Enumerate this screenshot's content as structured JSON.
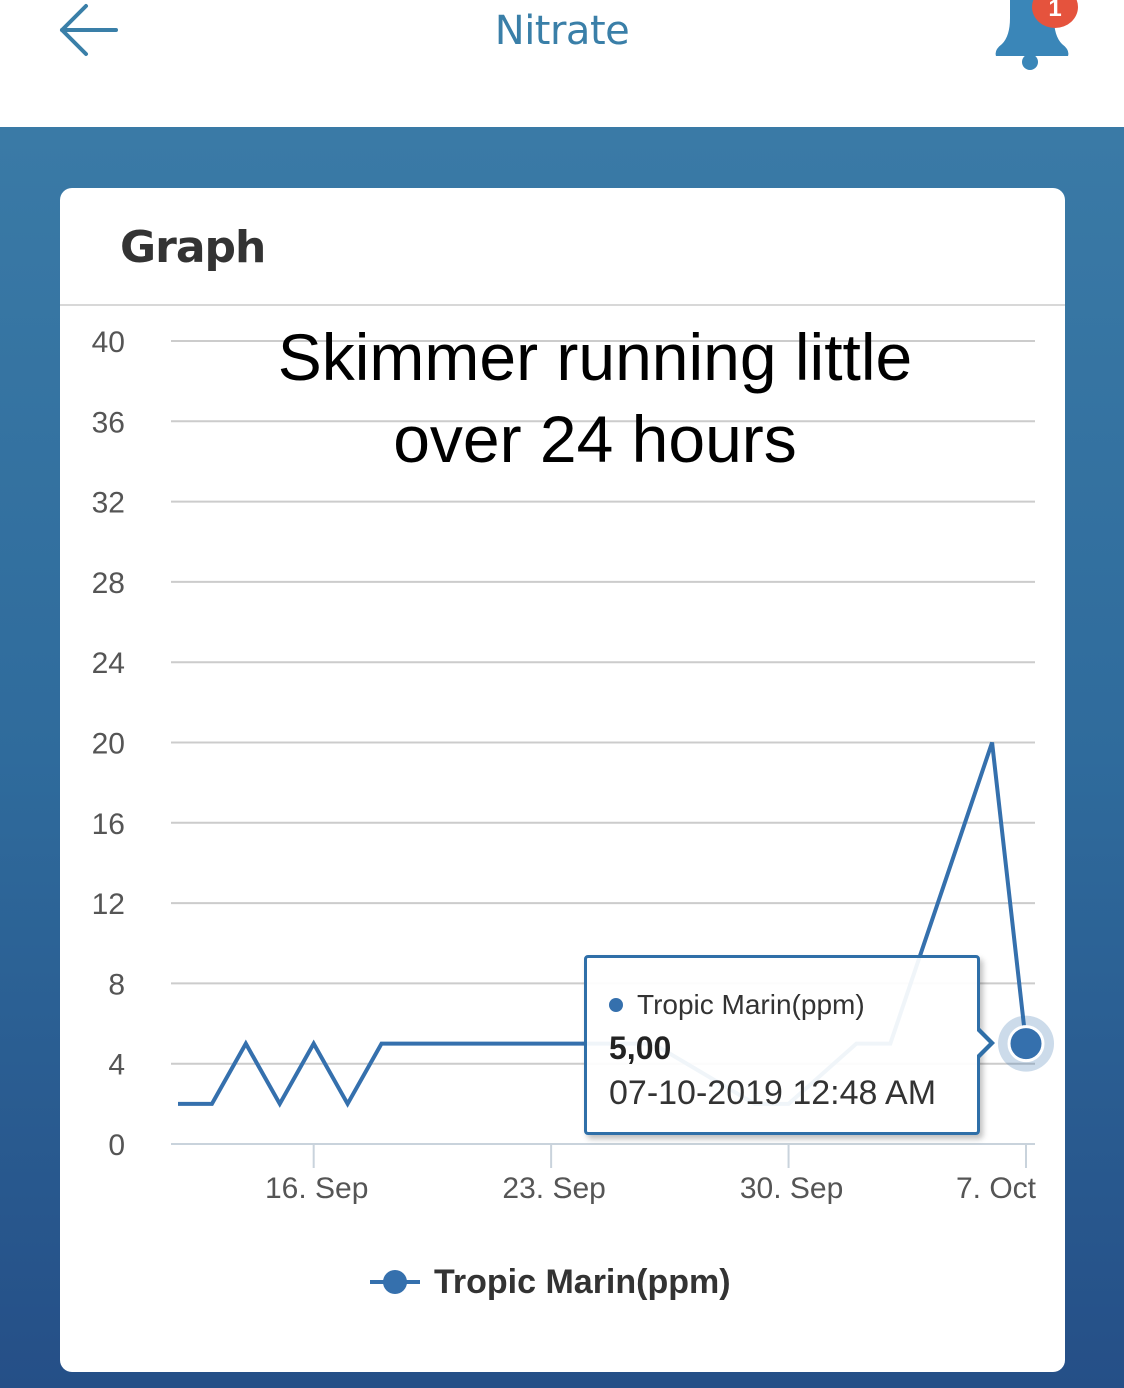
{
  "header": {
    "title": "Nitrate",
    "back_icon": "arrow-left-icon",
    "notification_icon": "bell-icon",
    "notification_count": "1",
    "accent_color": "#3a7fa8",
    "badge_color": "#e5533d"
  },
  "card": {
    "title": "Graph"
  },
  "annotation": {
    "line1": "Skimmer running little",
    "line2": "over 24 hours"
  },
  "tooltip": {
    "series": "Tropic Marin(ppm)",
    "value": "5,00",
    "date": "07-10-2019 12:48 AM"
  },
  "legend": {
    "label": "Tropic Marin(ppm)"
  },
  "chart_data": {
    "type": "line",
    "title": "",
    "xlabel": "",
    "ylabel": "",
    "ylim": [
      0,
      40
    ],
    "yticks": [
      0,
      4,
      8,
      12,
      16,
      20,
      24,
      28,
      32,
      36,
      40
    ],
    "xlim": [
      "2019-09-12",
      "2019-10-07"
    ],
    "xticks": [
      {
        "label": "16. Sep",
        "date": "2019-09-16"
      },
      {
        "label": "23. Sep",
        "date": "2019-09-23"
      },
      {
        "label": "30. Sep",
        "date": "2019-09-30"
      },
      {
        "label": "7. Oct",
        "date": "2019-10-07"
      }
    ],
    "grid": true,
    "legend_position": "bottom",
    "series_color": "#3570ad",
    "series": [
      {
        "name": "Tropic Marin(ppm)",
        "x": [
          "2019-09-12",
          "2019-09-13",
          "2019-09-14",
          "2019-09-15",
          "2019-09-15",
          "2019-09-16",
          "2019-09-17",
          "2019-09-17",
          "2019-09-18",
          "2019-09-18",
          "2019-09-26",
          "2019-09-29",
          "2019-09-30",
          "2019-10-02",
          "2019-10-03",
          "2019-10-06",
          "2019-10-07"
        ],
        "values": [
          2,
          2,
          5,
          2,
          2,
          5,
          2,
          2,
          5,
          5,
          5,
          2,
          2,
          5,
          5,
          20,
          5
        ]
      }
    ],
    "highlighted_point": {
      "x": "2019-10-07",
      "y": 5
    }
  }
}
